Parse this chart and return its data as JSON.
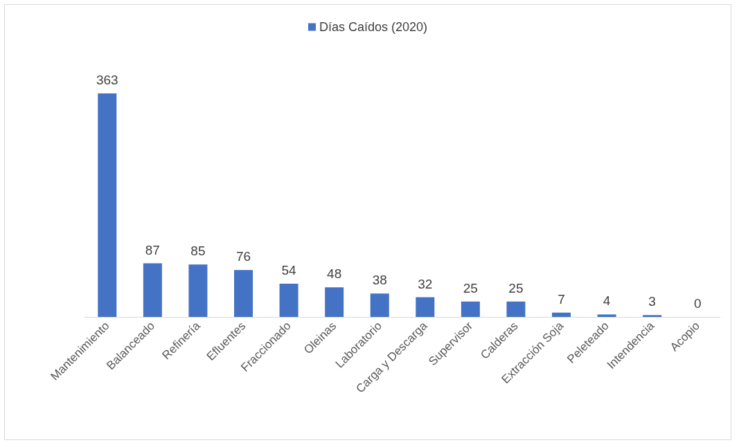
{
  "chart_data": {
    "type": "bar",
    "categories": [
      "Mantenimiento",
      "Balanceado",
      "Refinería",
      "Efluentes",
      "Fraccionado",
      "Oleinas",
      "Laboratorio",
      "Carga y Descarga",
      "Supervisor",
      "Calderas",
      "Extracción Soja",
      "Peleteado",
      "Intendencia",
      "Acopio"
    ],
    "series": [
      {
        "name": "Días Caídos (2020)",
        "color": "#4472c4",
        "values": [
          363,
          87,
          85,
          76,
          54,
          48,
          38,
          32,
          25,
          25,
          7,
          4,
          3,
          0
        ]
      }
    ],
    "data_labels": true,
    "legend": "top"
  }
}
